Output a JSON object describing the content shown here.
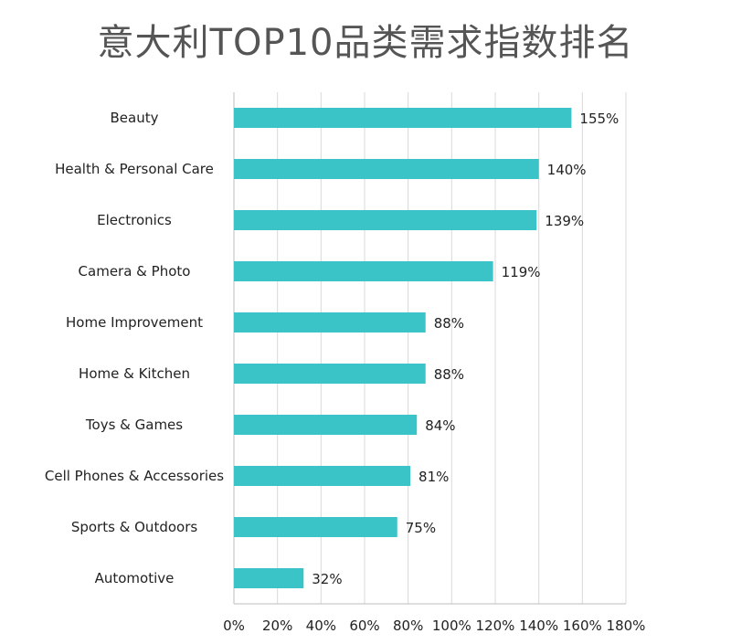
{
  "chart_data": {
    "type": "bar",
    "orientation": "horizontal",
    "title": "意大利TOP10品类需求指数排名",
    "categories": [
      "Beauty",
      "Health & Personal Care",
      "Electronics",
      "Camera & Photo",
      "Home Improvement",
      "Home & Kitchen",
      "Toys & Games",
      "Cell Phones & Accessories",
      "Sports & Outdoors",
      "Automotive"
    ],
    "values": [
      155,
      140,
      139,
      119,
      88,
      88,
      84,
      81,
      75,
      32
    ],
    "value_labels": [
      "155%",
      "140%",
      "139%",
      "119%",
      "88%",
      "88%",
      "84%",
      "81%",
      "75%",
      "32%"
    ],
    "xlim": [
      0,
      180
    ],
    "xticks": [
      0,
      20,
      40,
      60,
      80,
      100,
      120,
      140,
      160,
      180
    ],
    "xtick_labels": [
      "0%",
      "20%",
      "40%",
      "60%",
      "80%",
      "100%",
      "120%",
      "140%",
      "160%",
      "180%"
    ],
    "grid": true,
    "legend": "none",
    "bar_color": "#3bc4c8"
  }
}
